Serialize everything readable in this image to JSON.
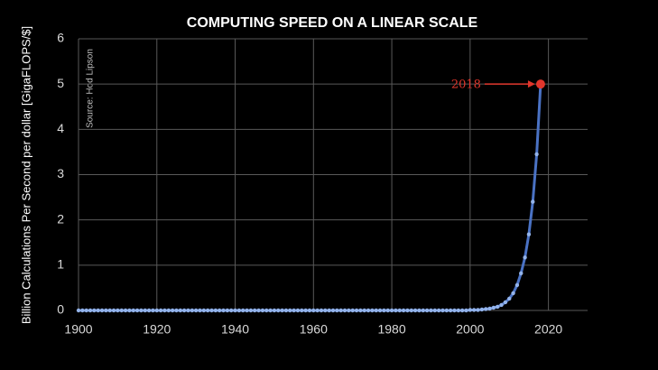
{
  "chart_data": {
    "type": "line",
    "title": "COMPUTING SPEED ON A LINEAR SCALE",
    "y_label": "Billion Calculations Per Second per dollar [GigaFLOPS/$]",
    "source_note": "Source: Hod Lipson",
    "annotation": {
      "text": "2018",
      "color": "#e0362c"
    },
    "x": [
      1900,
      1901,
      1902,
      1903,
      1904,
      1905,
      1906,
      1907,
      1908,
      1909,
      1910,
      1911,
      1912,
      1913,
      1914,
      1915,
      1916,
      1917,
      1918,
      1919,
      1920,
      1921,
      1922,
      1923,
      1924,
      1925,
      1926,
      1927,
      1928,
      1929,
      1930,
      1931,
      1932,
      1933,
      1934,
      1935,
      1936,
      1937,
      1938,
      1939,
      1940,
      1941,
      1942,
      1943,
      1944,
      1945,
      1946,
      1947,
      1948,
      1949,
      1950,
      1951,
      1952,
      1953,
      1954,
      1955,
      1956,
      1957,
      1958,
      1959,
      1960,
      1961,
      1962,
      1963,
      1964,
      1965,
      1966,
      1967,
      1968,
      1969,
      1970,
      1971,
      1972,
      1973,
      1974,
      1975,
      1976,
      1977,
      1978,
      1979,
      1980,
      1981,
      1982,
      1983,
      1984,
      1985,
      1986,
      1987,
      1988,
      1989,
      1990,
      1991,
      1992,
      1993,
      1994,
      1995,
      1996,
      1997,
      1998,
      1999,
      2000,
      2001,
      2002,
      2003,
      2004,
      2005,
      2006,
      2007,
      2008,
      2009,
      2010,
      2011,
      2012,
      2013,
      2014,
      2015,
      2016,
      2017,
      2018
    ],
    "series": [
      {
        "name": "GigaFLOPS per dollar",
        "color": "#4a72c4",
        "marker_color": "#93b3ea",
        "values": [
          0,
          0,
          0,
          0,
          0,
          0,
          0,
          0,
          0,
          0,
          0,
          0,
          0,
          0,
          0,
          0,
          0,
          0,
          0,
          0,
          0,
          0,
          0,
          0,
          0,
          0,
          0,
          0,
          0,
          0,
          0,
          0,
          0,
          0,
          0,
          0,
          0,
          0,
          0,
          0,
          0,
          0,
          0,
          0,
          0,
          0,
          0,
          0,
          0,
          0,
          0,
          0,
          0,
          0,
          0,
          0,
          0,
          0,
          0,
          0,
          0,
          0,
          0,
          0,
          0,
          0,
          0,
          0,
          0,
          0,
          0,
          0,
          0,
          0,
          0,
          0,
          0,
          0,
          0,
          0,
          0,
          0,
          0,
          0,
          0,
          0,
          0,
          0,
          0,
          0,
          0,
          0,
          0,
          0,
          0,
          0,
          0,
          0,
          0,
          0,
          0.01,
          0.01,
          0.01,
          0.02,
          0.03,
          0.04,
          0.06,
          0.08,
          0.12,
          0.18,
          0.26,
          0.38,
          0.56,
          0.82,
          1.17,
          1.68,
          2.4,
          3.45,
          5
        ]
      }
    ],
    "highlight_index": 118,
    "xlim": [
      1900,
      2030
    ],
    "xticks": [
      1900,
      1920,
      1940,
      1960,
      1980,
      2000,
      2020
    ],
    "ylim": [
      0,
      6
    ],
    "yticks": [
      0,
      1,
      2,
      3,
      4,
      5,
      6
    ],
    "grid": true
  }
}
